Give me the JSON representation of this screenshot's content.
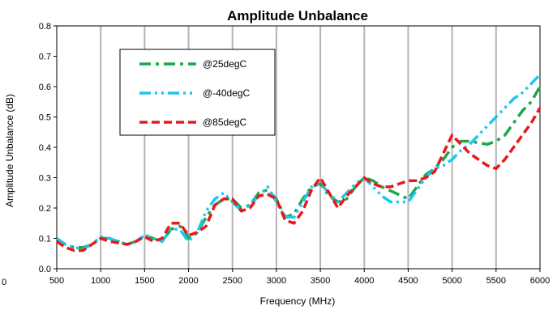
{
  "chart_data": {
    "type": "line",
    "title": "Amplitude Unbalance",
    "xlabel": "Frequency (MHz)",
    "ylabel": "Amplitude Unbalance (dB)",
    "xlim": [
      500,
      6000
    ],
    "ylim": [
      0.0,
      0.8
    ],
    "x_ticks": [
      "500",
      "1000",
      "1500",
      "2000",
      "2500",
      "3000",
      "3500",
      "4000",
      "4500",
      "5000",
      "5500",
      "6000"
    ],
    "y_ticks": [
      "0.0",
      "0.1",
      "0.2",
      "0.3",
      "0.4",
      "0.5",
      "0.6",
      "0.7",
      "0.8"
    ],
    "grid": "vertical",
    "legend_position": "top-left",
    "series": [
      {
        "name": "@25degC",
        "color": "#1aa84a",
        "dash": "dash-dot",
        "points": [
          [
            500,
            0.1
          ],
          [
            600,
            0.08
          ],
          [
            700,
            0.07
          ],
          [
            800,
            0.07
          ],
          [
            900,
            0.08
          ],
          [
            1000,
            0.1
          ],
          [
            1100,
            0.1
          ],
          [
            1200,
            0.09
          ],
          [
            1300,
            0.08
          ],
          [
            1400,
            0.09
          ],
          [
            1500,
            0.11
          ],
          [
            1600,
            0.1
          ],
          [
            1700,
            0.09
          ],
          [
            1800,
            0.13
          ],
          [
            1900,
            0.14
          ],
          [
            1950,
            0.13
          ],
          [
            2000,
            0.1
          ],
          [
            2100,
            0.12
          ],
          [
            2200,
            0.17
          ],
          [
            2300,
            0.21
          ],
          [
            2400,
            0.23
          ],
          [
            2500,
            0.23
          ],
          [
            2600,
            0.2
          ],
          [
            2700,
            0.21
          ],
          [
            2800,
            0.25
          ],
          [
            2900,
            0.26
          ],
          [
            3000,
            0.23
          ],
          [
            3100,
            0.17
          ],
          [
            3200,
            0.18
          ],
          [
            3300,
            0.23
          ],
          [
            3400,
            0.27
          ],
          [
            3500,
            0.28
          ],
          [
            3600,
            0.24
          ],
          [
            3700,
            0.22
          ],
          [
            3800,
            0.23
          ],
          [
            3900,
            0.27
          ],
          [
            4000,
            0.3
          ],
          [
            4100,
            0.29
          ],
          [
            4200,
            0.27
          ],
          [
            4350,
            0.25
          ],
          [
            4500,
            0.23
          ],
          [
            4600,
            0.27
          ],
          [
            4700,
            0.31
          ],
          [
            4800,
            0.33
          ],
          [
            4900,
            0.36
          ],
          [
            5000,
            0.4
          ],
          [
            5100,
            0.42
          ],
          [
            5200,
            0.42
          ],
          [
            5300,
            0.415
          ],
          [
            5400,
            0.41
          ],
          [
            5500,
            0.42
          ],
          [
            5600,
            0.44
          ],
          [
            5700,
            0.48
          ],
          [
            5800,
            0.52
          ],
          [
            5900,
            0.55
          ],
          [
            6000,
            0.6
          ]
        ]
      },
      {
        "name": "@-40degC",
        "color": "#1cc7f0",
        "dash": "dash-dot-dot",
        "points": [
          [
            500,
            0.1
          ],
          [
            600,
            0.08
          ],
          [
            700,
            0.07
          ],
          [
            800,
            0.065
          ],
          [
            900,
            0.08
          ],
          [
            1000,
            0.105
          ],
          [
            1100,
            0.1
          ],
          [
            1200,
            0.09
          ],
          [
            1300,
            0.08
          ],
          [
            1400,
            0.09
          ],
          [
            1500,
            0.11
          ],
          [
            1600,
            0.1
          ],
          [
            1700,
            0.09
          ],
          [
            1800,
            0.13
          ],
          [
            1900,
            0.13
          ],
          [
            2000,
            0.09
          ],
          [
            2100,
            0.12
          ],
          [
            2200,
            0.19
          ],
          [
            2300,
            0.23
          ],
          [
            2400,
            0.25
          ],
          [
            2500,
            0.22
          ],
          [
            2600,
            0.19
          ],
          [
            2700,
            0.21
          ],
          [
            2800,
            0.24
          ],
          [
            2900,
            0.27
          ],
          [
            3000,
            0.22
          ],
          [
            3100,
            0.17
          ],
          [
            3200,
            0.17
          ],
          [
            3300,
            0.22
          ],
          [
            3400,
            0.27
          ],
          [
            3500,
            0.28
          ],
          [
            3600,
            0.25
          ],
          [
            3700,
            0.22
          ],
          [
            3800,
            0.25
          ],
          [
            3900,
            0.28
          ],
          [
            4000,
            0.3
          ],
          [
            4100,
            0.27
          ],
          [
            4200,
            0.24
          ],
          [
            4300,
            0.22
          ],
          [
            4400,
            0.22
          ],
          [
            4500,
            0.22
          ],
          [
            4600,
            0.26
          ],
          [
            4700,
            0.3
          ],
          [
            4800,
            0.33
          ],
          [
            4900,
            0.34
          ],
          [
            5000,
            0.36
          ],
          [
            5100,
            0.39
          ],
          [
            5200,
            0.41
          ],
          [
            5300,
            0.44
          ],
          [
            5400,
            0.47
          ],
          [
            5500,
            0.5
          ],
          [
            5600,
            0.53
          ],
          [
            5700,
            0.56
          ],
          [
            5800,
            0.58
          ],
          [
            5900,
            0.61
          ],
          [
            6000,
            0.64
          ]
        ]
      },
      {
        "name": "@85degC",
        "color": "#e8191c",
        "dash": "dash",
        "points": [
          [
            500,
            0.09
          ],
          [
            600,
            0.07
          ],
          [
            700,
            0.06
          ],
          [
            800,
            0.06
          ],
          [
            900,
            0.08
          ],
          [
            1000,
            0.1
          ],
          [
            1100,
            0.09
          ],
          [
            1200,
            0.085
          ],
          [
            1300,
            0.08
          ],
          [
            1400,
            0.09
          ],
          [
            1500,
            0.105
          ],
          [
            1600,
            0.09
          ],
          [
            1700,
            0.1
          ],
          [
            1800,
            0.15
          ],
          [
            1900,
            0.15
          ],
          [
            2000,
            0.11
          ],
          [
            2100,
            0.12
          ],
          [
            2200,
            0.14
          ],
          [
            2300,
            0.21
          ],
          [
            2400,
            0.23
          ],
          [
            2500,
            0.23
          ],
          [
            2600,
            0.19
          ],
          [
            2700,
            0.2
          ],
          [
            2800,
            0.24
          ],
          [
            2900,
            0.245
          ],
          [
            3000,
            0.23
          ],
          [
            3100,
            0.16
          ],
          [
            3200,
            0.15
          ],
          [
            3300,
            0.19
          ],
          [
            3400,
            0.26
          ],
          [
            3500,
            0.3
          ],
          [
            3600,
            0.25
          ],
          [
            3700,
            0.2
          ],
          [
            3800,
            0.24
          ],
          [
            3900,
            0.27
          ],
          [
            4000,
            0.3
          ],
          [
            4100,
            0.28
          ],
          [
            4200,
            0.27
          ],
          [
            4300,
            0.27
          ],
          [
            4400,
            0.28
          ],
          [
            4500,
            0.29
          ],
          [
            4600,
            0.29
          ],
          [
            4700,
            0.3
          ],
          [
            4800,
            0.32
          ],
          [
            4900,
            0.38
          ],
          [
            5000,
            0.44
          ],
          [
            5100,
            0.41
          ],
          [
            5200,
            0.38
          ],
          [
            5300,
            0.36
          ],
          [
            5400,
            0.34
          ],
          [
            5500,
            0.33
          ],
          [
            5600,
            0.36
          ],
          [
            5700,
            0.4
          ],
          [
            5800,
            0.44
          ],
          [
            5900,
            0.48
          ],
          [
            6000,
            0.53
          ]
        ]
      }
    ]
  },
  "stray_label": "0"
}
